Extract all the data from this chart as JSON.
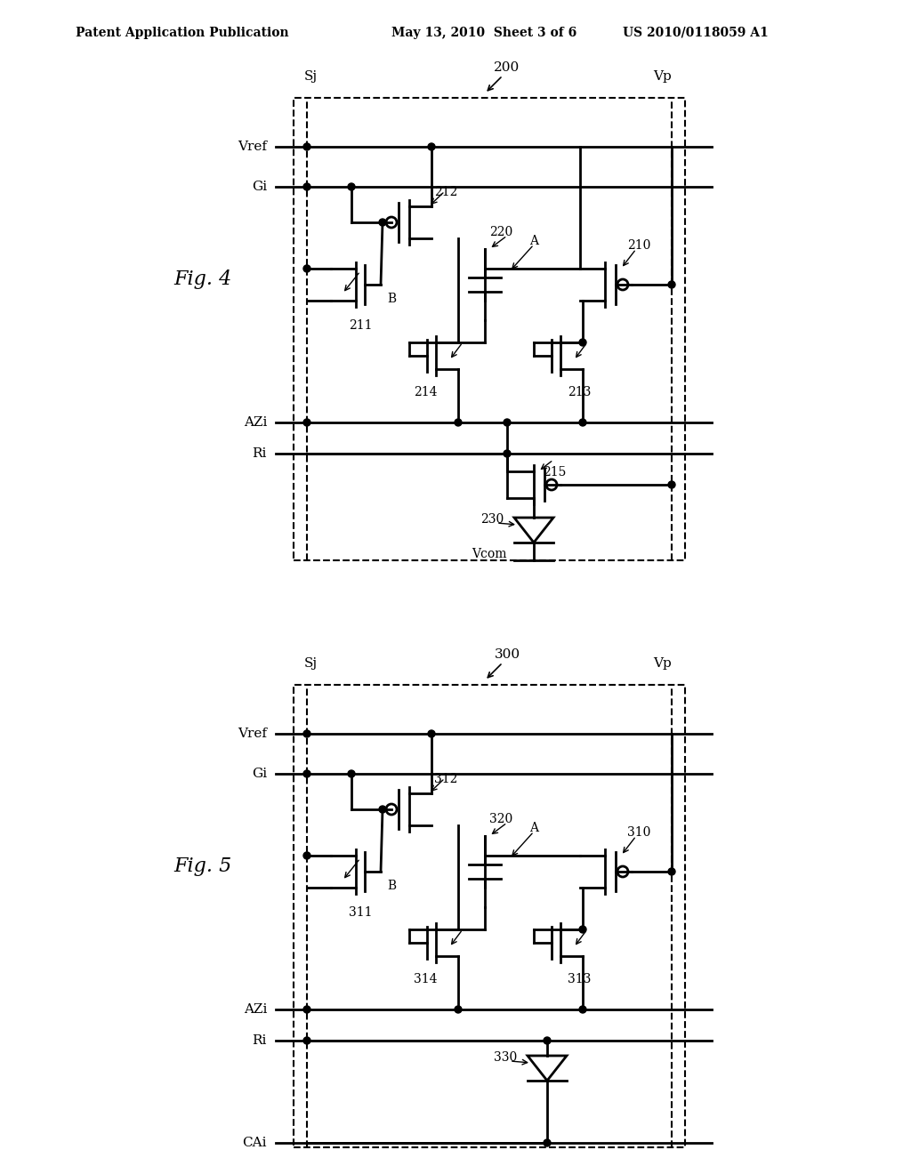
{
  "header_left": "Patent Application Publication",
  "header_mid": "May 13, 2010  Sheet 3 of 6",
  "header_right": "US 2010/0118059 A1",
  "fig4_label": "Fig. 4",
  "fig5_label": "Fig. 5",
  "fig4_num": "200",
  "fig5_num": "300",
  "background": "#ffffff",
  "line_color": "#000000"
}
